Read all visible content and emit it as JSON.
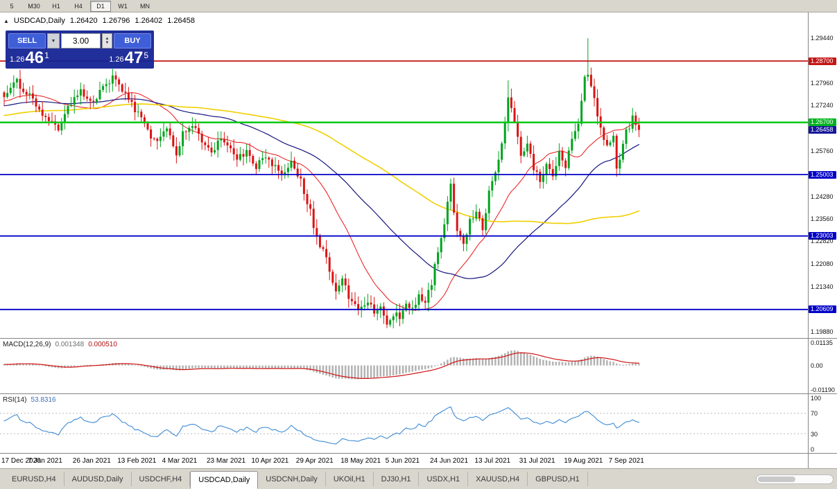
{
  "toolbar": {
    "buttons": [
      "5",
      "M30",
      "H1",
      "H4",
      "D1",
      "W1",
      "MN"
    ],
    "active": "D1"
  },
  "chart_header": {
    "marker": "▲",
    "symbol": "USDCAD,Daily",
    "open": "1.26420",
    "high": "1.26796",
    "low": "1.26402",
    "close": "1.26458"
  },
  "trade_panel": {
    "sell_label": "SELL",
    "buy_label": "BUY",
    "volume": "3.00",
    "sell_price": {
      "prefix": "1.26",
      "big": "46",
      "sup": "1"
    },
    "buy_price": {
      "prefix": "1.26",
      "big": "47",
      "sup": "5"
    }
  },
  "macd_panel": {
    "name": "MACD(12,26,9)",
    "value_main": "0.001348",
    "value_signal": "0.000510",
    "axis_labels": [
      {
        "text": "0.01135",
        "v": 0.01135
      },
      {
        "text": "0.00",
        "v": 0
      },
      {
        "text": "-0.01190",
        "v": -0.0119
      }
    ]
  },
  "rsi_panel": {
    "name": "RSI(14)",
    "value": "53.8316",
    "axis_labels": [
      {
        "text": "100",
        "v": 100
      },
      {
        "text": "70",
        "v": 70
      },
      {
        "text": "30",
        "v": 30
      },
      {
        "text": "0",
        "v": 0
      }
    ],
    "levels": [
      70,
      30
    ]
  },
  "time_axis": {
    "labels": [
      "17 Dec 2020",
      "7 Jan 2021",
      "26 Jan 2021",
      "13 Feb 2021",
      "4 Mar 2021",
      "23 Mar 2021",
      "10 Apr 2021",
      "29 Apr 2021",
      "18 May 2021",
      "5 Jun 2021",
      "24 Jun 2021",
      "13 Jul 2021",
      "31 Jul 2021",
      "19 Aug 2021",
      "7 Sep 2021"
    ]
  },
  "tabs": {
    "items": [
      "EURUSD,H4",
      "AUDUSD,Daily",
      "USDCHF,H4",
      "USDCAD,Daily",
      "USDCNH,Daily",
      "UKOil,H1",
      "DJ30,H1",
      "USDX,H1",
      "XAUUSD,H4",
      "GBPUSD,H1"
    ],
    "active_index": 3
  },
  "price_axis": {
    "labels": [
      {
        "text": "1.29440",
        "price": 1.2944,
        "style": "plain"
      },
      {
        "text": "1.28700",
        "price": 1.287,
        "style": "red"
      },
      {
        "text": "1.27960",
        "price": 1.2796,
        "style": "plain"
      },
      {
        "text": "1.27240",
        "price": 1.2724,
        "style": "plain"
      },
      {
        "text": "1.26700",
        "price": 1.267,
        "style": "green"
      },
      {
        "text": "1.26458",
        "price": 1.26458,
        "style": "current"
      },
      {
        "text": "1.25760",
        "price": 1.2576,
        "style": "plain"
      },
      {
        "text": "1.25003",
        "price": 1.25003,
        "style": "blue"
      },
      {
        "text": "1.24280",
        "price": 1.2428,
        "style": "plain"
      },
      {
        "text": "1.23560",
        "price": 1.2356,
        "style": "plain"
      },
      {
        "text": "1.23003",
        "price": 1.23003,
        "style": "blue"
      },
      {
        "text": "1.22820",
        "price": 1.2282,
        "style": "plain"
      },
      {
        "text": "1.22080",
        "price": 1.2208,
        "style": "plain"
      },
      {
        "text": "1.21340",
        "price": 1.2134,
        "style": "plain"
      },
      {
        "text": "1.20609",
        "price": 1.20609,
        "style": "blue"
      },
      {
        "text": "1.19880",
        "price": 1.1988,
        "style": "plain"
      }
    ]
  },
  "colors": {
    "tag_red": "#c41414",
    "tag_green": "#00b41e",
    "tag_blue": "#0000c8",
    "tag_current": "#16169a",
    "line_red": "#c41414",
    "line_green": "#00c814",
    "line_blue": "#0000c8",
    "candle_up": "#00a31e",
    "candle_down": "#d81414",
    "ma_fast": "#e81414",
    "ma_mid": "#14147d",
    "ma_slow": "#f0cf00",
    "macd_hist": "#b2b2b2",
    "macd_signal": "#d01111",
    "rsi_line": "#3d8bd4",
    "rsi_level": "#b8b8b8"
  },
  "chart_data": {
    "type": "candlestick",
    "symbol": "USDCAD",
    "timeframe": "Daily",
    "ohlc_current": {
      "open": 1.2642,
      "high": 1.26796,
      "low": 1.26402,
      "close": 1.26458
    },
    "bid": 1.26461,
    "ask": 1.26475,
    "n_bars": 200,
    "price_scale": {
      "top": 1.3028,
      "bottom": 1.1968
    },
    "last_close": 1.26458,
    "noise_amp": 0.0012,
    "close_anchors": [
      [
        0,
        1.276
      ],
      [
        4,
        1.28
      ],
      [
        8,
        1.2755
      ],
      [
        11,
        1.271
      ],
      [
        14,
        1.2685
      ],
      [
        17,
        1.2645
      ],
      [
        20,
        1.272
      ],
      [
        24,
        1.277
      ],
      [
        28,
        1.2735
      ],
      [
        31,
        1.2785
      ],
      [
        34,
        1.282
      ],
      [
        38,
        1.276
      ],
      [
        42,
        1.2695
      ],
      [
        45,
        1.264
      ],
      [
        48,
        1.26
      ],
      [
        51,
        1.265
      ],
      [
        54,
        1.257
      ],
      [
        56,
        1.263
      ],
      [
        59,
        1.2665
      ],
      [
        62,
        1.261
      ],
      [
        65,
        1.2575
      ],
      [
        68,
        1.262
      ],
      [
        70,
        1.259
      ],
      [
        73,
        1.255
      ],
      [
        76,
        1.258
      ],
      [
        79,
        1.253
      ],
      [
        82,
        1.2565
      ],
      [
        84,
        1.2535
      ],
      [
        87,
        1.25
      ],
      [
        90,
        1.2545
      ],
      [
        93,
        1.248
      ],
      [
        96,
        1.238
      ],
      [
        98,
        1.229
      ],
      [
        100,
        1.2255
      ],
      [
        102,
        1.2185
      ],
      [
        104,
        1.213
      ],
      [
        106,
        1.2155
      ],
      [
        108,
        1.2105
      ],
      [
        110,
        1.2075
      ],
      [
        112,
        1.206
      ],
      [
        114,
        1.209
      ],
      [
        116,
        1.205
      ],
      [
        118,
        1.207
      ],
      [
        120,
        1.202
      ],
      [
        122,
        1.205
      ],
      [
        124,
        1.203
      ],
      [
        126,
        1.2085
      ],
      [
        128,
        1.2055
      ],
      [
        130,
        1.2105
      ],
      [
        132,
        1.2075
      ],
      [
        134,
        1.215
      ],
      [
        136,
        1.2245
      ],
      [
        138,
        1.235
      ],
      [
        140,
        1.2465
      ],
      [
        142,
        1.231
      ],
      [
        144,
        1.228
      ],
      [
        146,
        1.2345
      ],
      [
        148,
        1.239
      ],
      [
        150,
        1.232
      ],
      [
        152,
        1.244
      ],
      [
        154,
        1.2515
      ],
      [
        156,
        1.259
      ],
      [
        158,
        1.2755
      ],
      [
        160,
        1.267
      ],
      [
        162,
        1.256
      ],
      [
        164,
        1.26
      ],
      [
        166,
        1.252
      ],
      [
        168,
        1.2475
      ],
      [
        170,
        1.254
      ],
      [
        172,
        1.249
      ],
      [
        174,
        1.2565
      ],
      [
        176,
        1.2525
      ],
      [
        178,
        1.2615
      ],
      [
        180,
        1.2655
      ],
      [
        182,
        1.2815
      ],
      [
        183,
        1.282
      ],
      [
        185,
        1.275
      ],
      [
        187,
        1.2645
      ],
      [
        189,
        1.26
      ],
      [
        191,
        1.262
      ],
      [
        192,
        1.252
      ],
      [
        193,
        1.2545
      ],
      [
        195,
        1.265
      ],
      [
        196,
        1.264
      ],
      [
        197,
        1.27
      ],
      [
        198,
        1.266
      ],
      [
        199,
        1.26458
      ]
    ],
    "wick_overrides": [
      {
        "i": 140,
        "high": 1.2487
      },
      {
        "i": 158,
        "high": 1.2807
      },
      {
        "i": 183,
        "high": 1.2944
      },
      {
        "i": 120,
        "low": 1.2
      },
      {
        "i": 192,
        "low": 1.2493
      }
    ],
    "hlines": [
      {
        "price": 1.287,
        "style": "red",
        "width": 1.8
      },
      {
        "price": 1.267,
        "style": "green",
        "width": 2.5
      },
      {
        "price": 1.25003,
        "style": "blue",
        "width": 1.8
      },
      {
        "price": 1.23003,
        "style": "blue",
        "width": 1.8
      },
      {
        "price": 1.20609,
        "style": "blue",
        "width": 1.8
      }
    ],
    "moving_averages": [
      {
        "period": 20,
        "color_key": "ma_fast",
        "width": 1
      },
      {
        "period": 50,
        "color_key": "ma_mid",
        "width": 1.2
      },
      {
        "period": 100,
        "color_key": "ma_slow",
        "width": 1.6
      }
    ],
    "macd": {
      "fast": 12,
      "slow": 26,
      "signal": 9,
      "fit_pos": 0.0075,
      "fit_neg": 0.0119,
      "axis_max": 0.0133,
      "axis_min": -0.0139
    },
    "rsi": {
      "period": 14,
      "scale_max": 108,
      "scale_min": -8
    }
  }
}
